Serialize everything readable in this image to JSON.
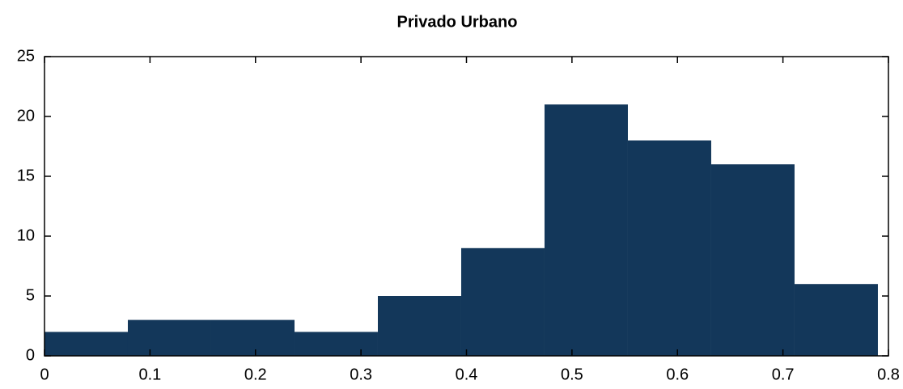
{
  "chart_data": {
    "type": "histogram",
    "title": "Privado Urbano",
    "bins": [
      0,
      0.079,
      0.158,
      0.237,
      0.316,
      0.395,
      0.474,
      0.553,
      0.632,
      0.711,
      0.79
    ],
    "values": [
      2,
      3,
      3,
      2,
      5,
      9,
      21,
      18,
      16,
      6
    ],
    "color": "#13375a",
    "xlim": [
      0,
      0.8
    ],
    "xticks": [
      0,
      0.1,
      0.2,
      0.3,
      0.4,
      0.5,
      0.6,
      0.7,
      0.8
    ],
    "ylim": [
      0,
      25
    ],
    "yticks": [
      0,
      5,
      10,
      15,
      20,
      25
    ]
  }
}
